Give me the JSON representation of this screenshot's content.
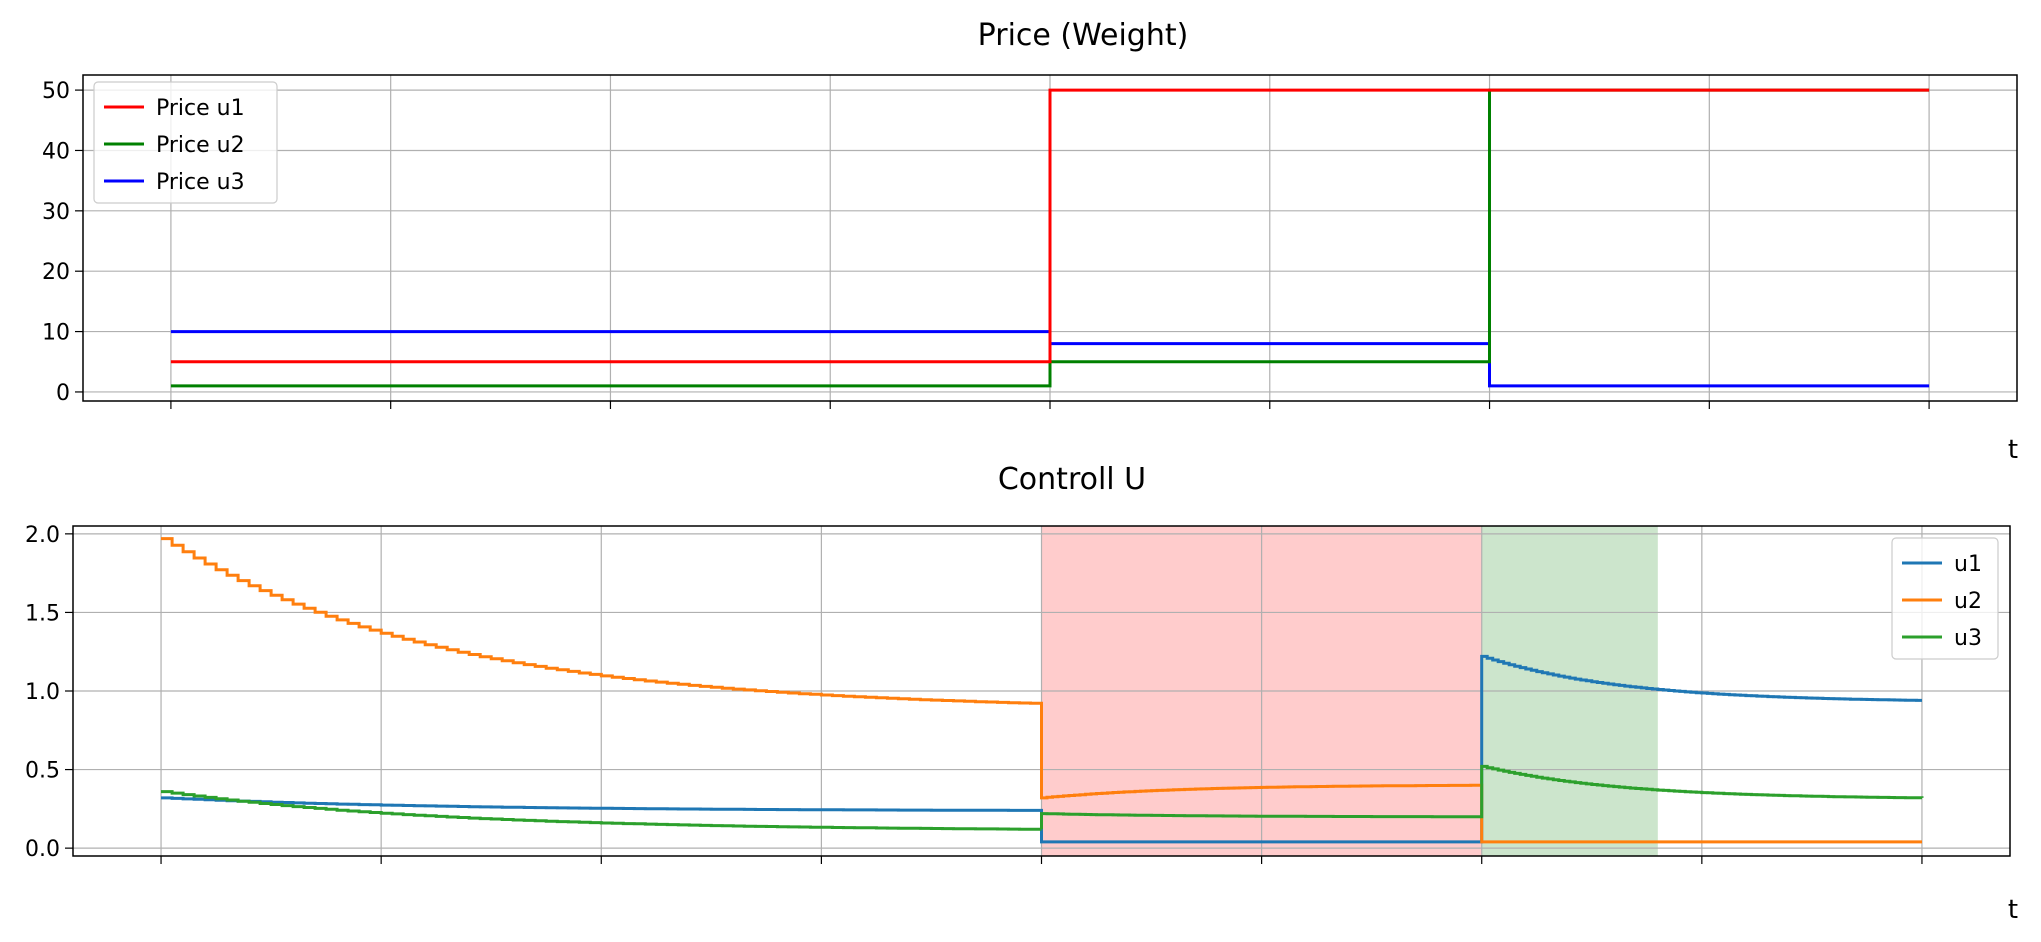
{
  "chart_data": [
    {
      "type": "line",
      "title": "Price (Weight)",
      "xlabel": "t",
      "ylabel": "",
      "xlim": [
        -0.4,
        8.4
      ],
      "ylim": [
        -1.5,
        52.5
      ],
      "xticks": [
        0,
        1,
        2,
        3,
        4,
        5,
        6,
        7,
        8
      ],
      "yticks": [
        0,
        10,
        20,
        30,
        40,
        50
      ],
      "ytick_labels": [
        "0",
        "10",
        "20",
        "30",
        "40",
        "50"
      ],
      "grid": true,
      "legend": "top-left",
      "step": true,
      "series": [
        {
          "name": "Price u1",
          "color": "#ff0000",
          "x": [
            0,
            4,
            4,
            6,
            6,
            8
          ],
          "values": [
            5,
            5,
            50,
            50,
            50,
            50
          ]
        },
        {
          "name": "Price u2",
          "color": "#008000",
          "x": [
            0,
            4,
            4,
            6,
            6,
            8
          ],
          "values": [
            1,
            1,
            5,
            5,
            50,
            50
          ]
        },
        {
          "name": "Price u3",
          "color": "#0000ff",
          "x": [
            0,
            4,
            4,
            6,
            6,
            8
          ],
          "values": [
            10,
            10,
            8,
            8,
            1,
            1
          ]
        }
      ]
    },
    {
      "type": "line",
      "title": "Controll U",
      "xlabel": "t",
      "ylabel": "",
      "xlim": [
        -0.4,
        8.4
      ],
      "ylim": [
        -0.05,
        2.05
      ],
      "xticks": [
        0,
        1,
        2,
        3,
        4,
        5,
        6,
        7,
        8
      ],
      "yticks": [
        0.0,
        0.5,
        1.0,
        1.5,
        2.0
      ],
      "ytick_labels": [
        "0.0",
        "0.5",
        "1.0",
        "1.5",
        "2.0"
      ],
      "grid": true,
      "legend": "top-right",
      "shaded_regions": [
        {
          "x0": 4.0,
          "x1": 6.0,
          "color": "#ff9999",
          "opacity": 0.5
        },
        {
          "x0": 6.0,
          "x1": 6.8,
          "color": "#99cc99",
          "opacity": 0.5
        }
      ],
      "segments": [
        {
          "x0": 0.0,
          "x1": 4.0,
          "u1": [
            0.32,
            0.24
          ],
          "u2": [
            1.97,
            0.92
          ],
          "u3": [
            0.36,
            0.12
          ]
        },
        {
          "x0": 4.0,
          "x1": 6.0,
          "u1": [
            0.04,
            0.04
          ],
          "u2": [
            0.32,
            0.4
          ],
          "u3": [
            0.22,
            0.2
          ]
        },
        {
          "x0": 6.0,
          "x1": 8.0,
          "u1": [
            1.22,
            0.94
          ],
          "u2": [
            0.04,
            0.04
          ],
          "u3": [
            0.52,
            0.32
          ]
        }
      ],
      "series": [
        {
          "name": "u1",
          "color": "#1f77b4"
        },
        {
          "name": "u2",
          "color": "#ff7f0e"
        },
        {
          "name": "u3",
          "color": "#2ca02c"
        }
      ]
    }
  ]
}
